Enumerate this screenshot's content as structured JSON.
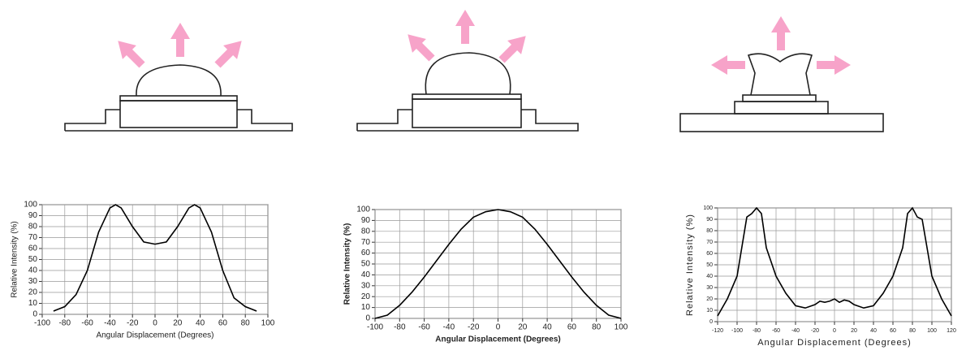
{
  "chart_data": [
    {
      "type": "line",
      "xlabel": "Angular Displacement (Degrees)",
      "ylabel": "Relative Intensity (%)",
      "color": "#000000",
      "grid": true,
      "x": [
        -90,
        -80,
        -70,
        -60,
        -50,
        -40,
        -35,
        -30,
        -20,
        -10,
        0,
        10,
        20,
        30,
        35,
        40,
        50,
        60,
        70,
        80,
        90
      ],
      "values": [
        3,
        7,
        18,
        40,
        75,
        97,
        100,
        97,
        80,
        66,
        64,
        66,
        80,
        97,
        100,
        97,
        75,
        40,
        15,
        7,
        3
      ],
      "xlim": [
        -100,
        100
      ],
      "xticks": [
        -100,
        -80,
        -60,
        -40,
        -20,
        0,
        20,
        40,
        60,
        80,
        100
      ],
      "ylim": [
        0,
        100
      ],
      "yticks": [
        0,
        10,
        20,
        30,
        40,
        50,
        60,
        70,
        80,
        90,
        100
      ]
    },
    {
      "type": "line",
      "xlabel": "Angular Displacement (Degrees)",
      "ylabel": "Relative Intensity (%)",
      "color": "#000000",
      "grid": true,
      "x": [
        -100,
        -90,
        -80,
        -70,
        -60,
        -50,
        -40,
        -30,
        -20,
        -10,
        0,
        10,
        20,
        30,
        40,
        50,
        60,
        70,
        80,
        90,
        100
      ],
      "values": [
        0,
        3,
        12,
        24,
        38,
        53,
        68,
        82,
        93,
        98,
        100,
        98,
        93,
        82,
        68,
        53,
        38,
        24,
        12,
        3,
        0
      ],
      "xlim": [
        -100,
        100
      ],
      "xticks": [
        -100,
        -80,
        -60,
        -40,
        -20,
        0,
        20,
        40,
        60,
        80,
        100
      ],
      "ylim": [
        0,
        100
      ],
      "yticks": [
        0,
        10,
        20,
        30,
        40,
        50,
        60,
        70,
        80,
        90,
        100
      ]
    },
    {
      "type": "line",
      "xlabel": "Angular Displacement (Degrees)",
      "ylabel": "Relative Intensity (%)",
      "color": "#000000",
      "grid": true,
      "x": [
        -120,
        -110,
        -100,
        -90,
        -85,
        -80,
        -75,
        -70,
        -60,
        -50,
        -40,
        -30,
        -20,
        -15,
        -10,
        -5,
        0,
        5,
        10,
        15,
        20,
        30,
        40,
        50,
        60,
        70,
        75,
        80,
        85,
        90,
        100,
        110,
        120
      ],
      "values": [
        5,
        20,
        40,
        92,
        95,
        100,
        95,
        65,
        40,
        25,
        14,
        12,
        15,
        18,
        17,
        18,
        20,
        17,
        19,
        18,
        15,
        12,
        14,
        25,
        40,
        65,
        95,
        100,
        92,
        90,
        40,
        20,
        5
      ],
      "xlim": [
        -120,
        120
      ],
      "xticks": [
        -120,
        -100,
        -80,
        -60,
        -40,
        -20,
        0,
        20,
        40,
        60,
        80,
        100,
        120
      ],
      "ylim": [
        0,
        100
      ],
      "yticks": [
        0,
        10,
        20,
        30,
        40,
        50,
        60,
        70,
        80,
        90,
        100
      ]
    }
  ]
}
